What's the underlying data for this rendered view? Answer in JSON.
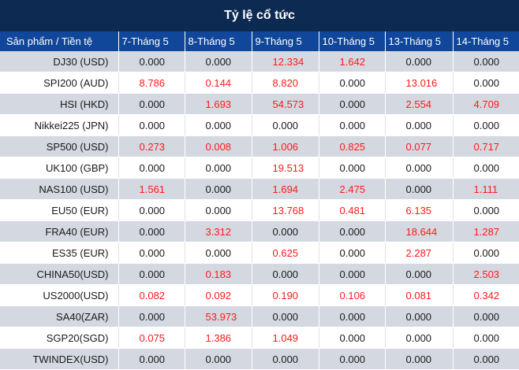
{
  "title": "Tỷ lệ cổ tức",
  "colors": {
    "header_bg": "#0d2a52",
    "col_header_bg": "#10479a",
    "stripe": "#d4d8e0",
    "positive": "#ff1a1a"
  },
  "columns": [
    "Sản phẩm / Tiền tệ",
    "7-Tháng 5",
    "8-Tháng 5",
    "9-Tháng 5",
    "10-Tháng 5",
    "13-Tháng 5",
    "14-Tháng 5"
  ],
  "rows": [
    {
      "product": "DJ30 (USD)",
      "values": [
        "0.000",
        "0.000",
        "12.334",
        "1.642",
        "0.000",
        "0.000"
      ]
    },
    {
      "product": "SPI200 (AUD)",
      "values": [
        "8.786",
        "0.144",
        "8.820",
        "0.000",
        "13.016",
        "0.000"
      ]
    },
    {
      "product": "HSI (HKD)",
      "values": [
        "0.000",
        "1.693",
        "54.573",
        "0.000",
        "2.554",
        "4.709"
      ]
    },
    {
      "product": "Nikkei225 (JPN)",
      "values": [
        "0.000",
        "0.000",
        "0.000",
        "0.000",
        "0.000",
        "0.000"
      ]
    },
    {
      "product": "SP500 (USD)",
      "values": [
        "0.273",
        "0.008",
        "1.006",
        "0.825",
        "0.077",
        "0.717"
      ]
    },
    {
      "product": "UK100 (GBP)",
      "values": [
        "0.000",
        "0.000",
        "19.513",
        "0.000",
        "0.000",
        "0.000"
      ]
    },
    {
      "product": "NAS100 (USD)",
      "values": [
        "1.561",
        "0.000",
        "1.694",
        "2.475",
        "0.000",
        "1.111"
      ]
    },
    {
      "product": "EU50 (EUR)",
      "values": [
        "0.000",
        "0.000",
        "13.768",
        "0.481",
        "6.135",
        "0.000"
      ]
    },
    {
      "product": "FRA40 (EUR)",
      "values": [
        "0.000",
        "3.312",
        "0.000",
        "0.000",
        "18.644",
        "1.287"
      ]
    },
    {
      "product": "ES35 (EUR)",
      "values": [
        "0.000",
        "0.000",
        "0.625",
        "0.000",
        "2.287",
        "0.000"
      ]
    },
    {
      "product": "CHINA50(USD)",
      "values": [
        "0.000",
        "0.183",
        "0.000",
        "0.000",
        "0.000",
        "2.503"
      ]
    },
    {
      "product": "US2000(USD)",
      "values": [
        "0.082",
        "0.092",
        "0.190",
        "0.106",
        "0.081",
        "0.342"
      ]
    },
    {
      "product": "SA40(ZAR)",
      "values": [
        "0.000",
        "53.973",
        "0.000",
        "0.000",
        "0.000",
        "0.000"
      ]
    },
    {
      "product": "SGP20(SGD)",
      "values": [
        "0.075",
        "1.386",
        "1.049",
        "0.000",
        "0.000",
        "0.000"
      ]
    },
    {
      "product": "TWINDEX(USD)",
      "values": [
        "0.000",
        "0.000",
        "0.000",
        "0.000",
        "0.000",
        "0.000"
      ]
    }
  ]
}
